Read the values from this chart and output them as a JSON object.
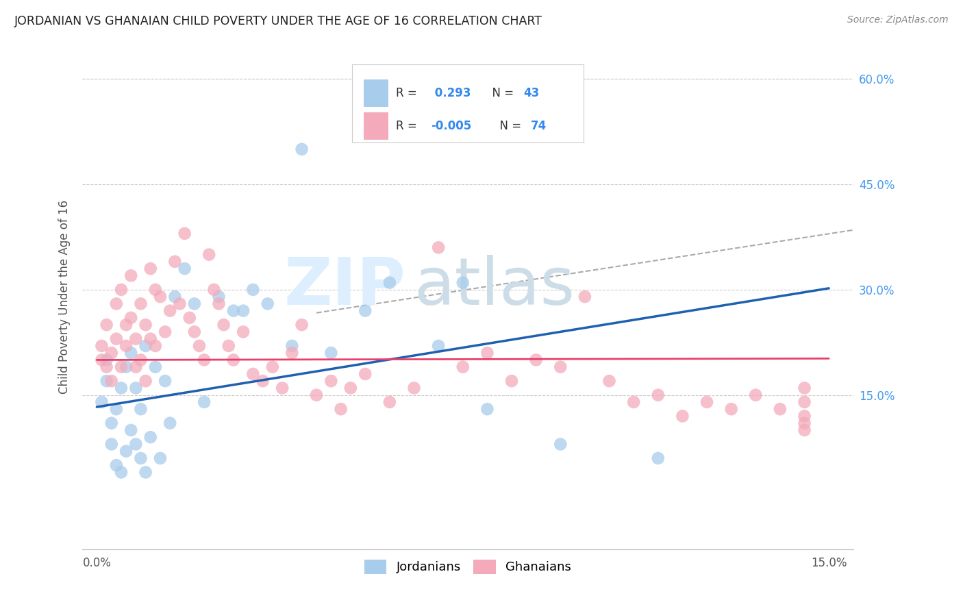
{
  "title": "JORDANIAN VS GHANAIAN CHILD POVERTY UNDER THE AGE OF 16 CORRELATION CHART",
  "source": "Source: ZipAtlas.com",
  "ylabel": "Child Poverty Under the Age of 16",
  "xlim": [
    -0.003,
    0.155
  ],
  "ylim": [
    -0.07,
    0.65
  ],
  "xticks": [
    0.0,
    0.025,
    0.05,
    0.075,
    0.1,
    0.125,
    0.15
  ],
  "xticklabels": [
    "0.0%",
    "",
    "",
    "",
    "",
    "",
    "15.0%"
  ],
  "yticks_right": [
    0.15,
    0.3,
    0.45,
    0.6
  ],
  "ytick_right_labels": [
    "15.0%",
    "30.0%",
    "45.0%",
    "60.0%"
  ],
  "legend_label1": "Jordanians",
  "legend_label2": "Ghanaians",
  "color_jordanian": "#A8CCEC",
  "color_ghanaian": "#F4AABB",
  "color_line_jordanian": "#2060B0",
  "color_line_ghanaian": "#E8406A",
  "color_dashed": "#AAAAAA",
  "jordn_line_x0": 0.0,
  "jordn_line_y0": 0.133,
  "jordn_line_x1": 0.15,
  "jordn_line_y1": 0.302,
  "ghana_line_x0": 0.0,
  "ghana_line_y0": 0.2,
  "ghana_line_x1": 0.15,
  "ghana_line_y1": 0.202,
  "dash_line_x0": 0.045,
  "dash_line_y0": 0.267,
  "dash_line_x1": 0.155,
  "dash_line_y1": 0.385,
  "jordanian_x": [
    0.001,
    0.002,
    0.002,
    0.003,
    0.003,
    0.004,
    0.004,
    0.005,
    0.005,
    0.006,
    0.006,
    0.007,
    0.007,
    0.008,
    0.008,
    0.009,
    0.009,
    0.01,
    0.01,
    0.011,
    0.012,
    0.013,
    0.014,
    0.015,
    0.016,
    0.018,
    0.02,
    0.022,
    0.025,
    0.028,
    0.03,
    0.032,
    0.035,
    0.04,
    0.042,
    0.048,
    0.055,
    0.06,
    0.07,
    0.075,
    0.08,
    0.095,
    0.115
  ],
  "jordanian_y": [
    0.14,
    0.17,
    0.2,
    0.08,
    0.11,
    0.13,
    0.05,
    0.16,
    0.04,
    0.07,
    0.19,
    0.1,
    0.21,
    0.08,
    0.16,
    0.13,
    0.06,
    0.04,
    0.22,
    0.09,
    0.19,
    0.06,
    0.17,
    0.11,
    0.29,
    0.33,
    0.28,
    0.14,
    0.29,
    0.27,
    0.27,
    0.3,
    0.28,
    0.22,
    0.5,
    0.21,
    0.27,
    0.31,
    0.22,
    0.31,
    0.13,
    0.08,
    0.06
  ],
  "ghanaian_x": [
    0.001,
    0.001,
    0.002,
    0.002,
    0.003,
    0.003,
    0.004,
    0.004,
    0.005,
    0.005,
    0.006,
    0.006,
    0.007,
    0.007,
    0.008,
    0.008,
    0.009,
    0.009,
    0.01,
    0.01,
    0.011,
    0.011,
    0.012,
    0.012,
    0.013,
    0.014,
    0.015,
    0.016,
    0.017,
    0.018,
    0.019,
    0.02,
    0.021,
    0.022,
    0.023,
    0.024,
    0.025,
    0.026,
    0.027,
    0.028,
    0.03,
    0.032,
    0.034,
    0.036,
    0.038,
    0.04,
    0.042,
    0.045,
    0.048,
    0.05,
    0.052,
    0.055,
    0.06,
    0.065,
    0.07,
    0.075,
    0.08,
    0.085,
    0.09,
    0.095,
    0.1,
    0.105,
    0.11,
    0.115,
    0.12,
    0.125,
    0.13,
    0.135,
    0.14,
    0.145,
    0.145,
    0.145,
    0.145,
    0.145
  ],
  "ghanaian_y": [
    0.2,
    0.22,
    0.19,
    0.25,
    0.17,
    0.21,
    0.28,
    0.23,
    0.3,
    0.19,
    0.25,
    0.22,
    0.26,
    0.32,
    0.19,
    0.23,
    0.28,
    0.2,
    0.17,
    0.25,
    0.23,
    0.33,
    0.22,
    0.3,
    0.29,
    0.24,
    0.27,
    0.34,
    0.28,
    0.38,
    0.26,
    0.24,
    0.22,
    0.2,
    0.35,
    0.3,
    0.28,
    0.25,
    0.22,
    0.2,
    0.24,
    0.18,
    0.17,
    0.19,
    0.16,
    0.21,
    0.25,
    0.15,
    0.17,
    0.13,
    0.16,
    0.18,
    0.14,
    0.16,
    0.36,
    0.19,
    0.21,
    0.17,
    0.2,
    0.19,
    0.29,
    0.17,
    0.14,
    0.15,
    0.12,
    0.14,
    0.13,
    0.15,
    0.13,
    0.1,
    0.14,
    0.12,
    0.16,
    0.11
  ]
}
